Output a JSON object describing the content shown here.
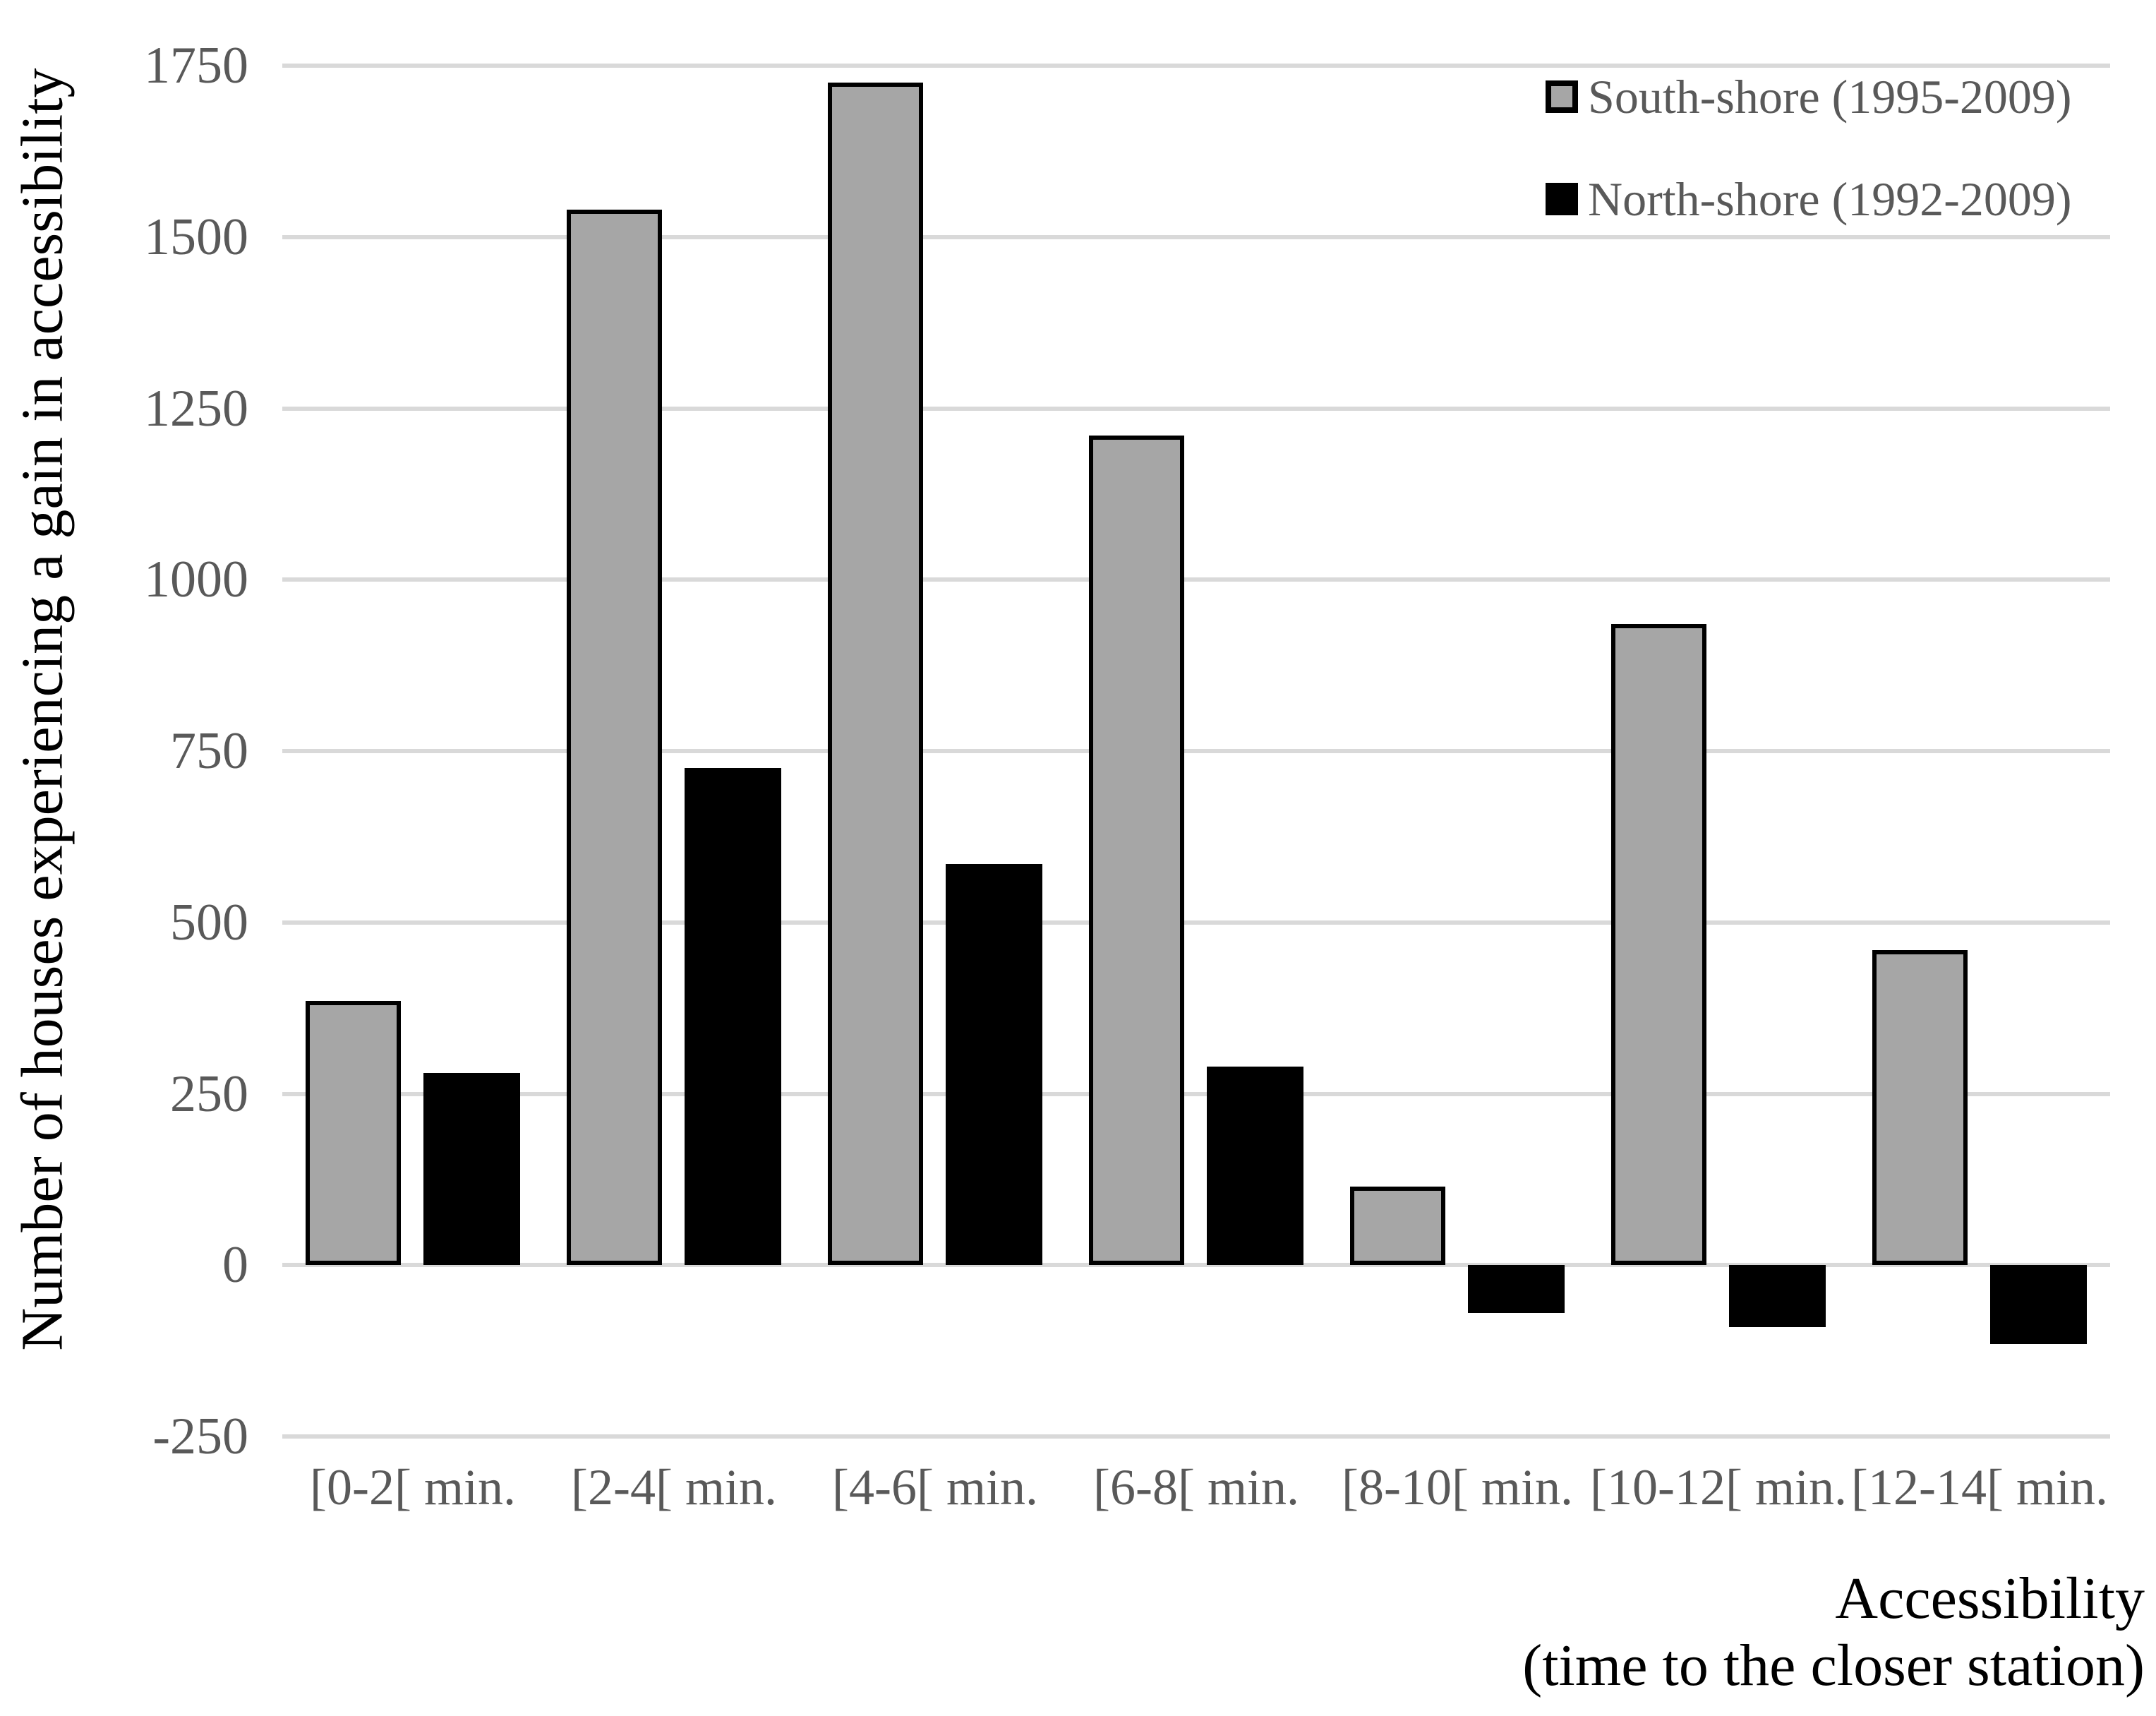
{
  "chart_data": {
    "type": "bar",
    "title": "",
    "categories": [
      "[0-2[ min.",
      "[2-4[ min.",
      "[4-6[ min.",
      "[6-8[ min.",
      "[8-10[ min.",
      "[10-12[ min.",
      "[12-14[ min."
    ],
    "series": [
      {
        "name": "South-shore (1995-2009)",
        "color": "#a6a6a6",
        "border": "#000000",
        "values": [
          385,
          1540,
          1725,
          1210,
          115,
          935,
          460
        ]
      },
      {
        "name": "North-shore (1992-2009)",
        "color": "#000000",
        "border": "#000000",
        "values": [
          280,
          725,
          585,
          290,
          -70,
          -90,
          -115
        ]
      }
    ],
    "ylabel": "Number of houses experiencing a gain in accessibility",
    "xlabel_line1": "Accessibility",
    "xlabel_line2": "(time to the closer station)",
    "ylim": [
      -250,
      1750
    ],
    "yticks": [
      1750,
      1500,
      1250,
      1000,
      750,
      500,
      250,
      0,
      -250
    ],
    "grid": true,
    "legend_position": "top-right",
    "colors": {
      "background": "#ffffff",
      "gridline": "#d9d9d9",
      "tick_text": "#595959",
      "axis_title_text": "#000000",
      "bar_border": "#000000",
      "south_fill": "#a6a6a6",
      "north_fill": "#000000"
    }
  }
}
